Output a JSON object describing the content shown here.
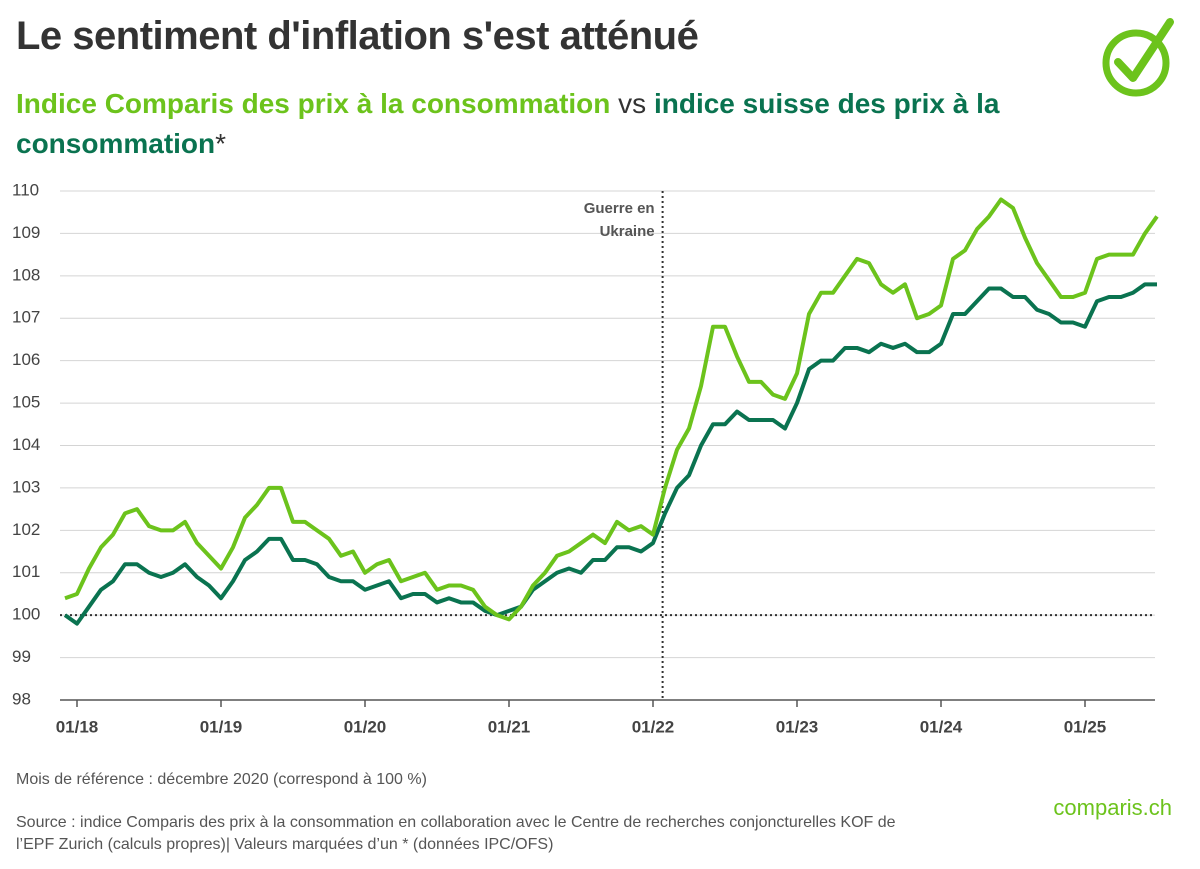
{
  "chart_data": {
    "type": "line",
    "title": "Le sentiment d'inflation s'est atténué",
    "subtitle_connector": "vs",
    "subtitle_suffix": "*",
    "categories": [
      null,
      "01/18",
      null,
      null,
      null,
      null,
      null,
      null,
      null,
      null,
      null,
      null,
      null,
      "01/19",
      null,
      null,
      null,
      null,
      null,
      null,
      null,
      null,
      null,
      null,
      null,
      "01/20",
      null,
      null,
      null,
      null,
      null,
      null,
      null,
      null,
      null,
      null,
      null,
      "01/21",
      null,
      null,
      null,
      null,
      null,
      null,
      null,
      null,
      null,
      null,
      null,
      "01/22",
      null,
      null,
      null,
      null,
      null,
      null,
      null,
      null,
      null,
      null,
      null,
      "01/23",
      null,
      null,
      null,
      null,
      null,
      null,
      null,
      null,
      null,
      null,
      null,
      "01/24",
      null,
      null,
      null,
      null,
      null,
      null,
      null,
      null,
      null,
      null,
      null,
      "01/25",
      null,
      null,
      null,
      null,
      null,
      null
    ],
    "series": [
      {
        "name": "Indice Comparis des prix à la consommation",
        "color": "#6cc31c",
        "values": [
          100.4,
          100.5,
          101.1,
          101.6,
          101.9,
          102.4,
          102.5,
          102.1,
          102.0,
          102.0,
          102.2,
          101.7,
          101.4,
          101.1,
          101.6,
          102.3,
          102.6,
          103.0,
          103.0,
          102.2,
          102.2,
          102.0,
          101.8,
          101.4,
          101.5,
          101.0,
          101.2,
          101.3,
          100.8,
          100.9,
          101.0,
          100.6,
          100.7,
          100.7,
          100.6,
          100.2,
          100.0,
          99.9,
          100.2,
          100.7,
          101.0,
          101.4,
          101.5,
          101.7,
          101.9,
          101.7,
          102.2,
          102.0,
          102.1,
          101.9,
          103.0,
          103.9,
          104.4,
          105.4,
          106.8,
          106.8,
          106.1,
          105.5,
          105.5,
          105.2,
          105.1,
          105.7,
          107.1,
          107.6,
          107.6,
          108.0,
          108.4,
          108.3,
          107.8,
          107.6,
          107.8,
          107.0,
          107.1,
          107.3,
          108.4,
          108.6,
          109.1,
          109.4,
          109.8,
          109.6,
          108.9,
          108.3,
          107.9,
          107.5,
          107.5,
          107.6,
          108.4,
          108.5,
          108.5,
          108.5,
          109.0,
          109.4
        ]
      },
      {
        "name": "indice suisse des prix à la consommation",
        "color": "#0a7350",
        "values": [
          100.0,
          99.8,
          100.2,
          100.6,
          100.8,
          101.2,
          101.2,
          101.0,
          100.9,
          101.0,
          101.2,
          100.9,
          100.7,
          100.4,
          100.8,
          101.3,
          101.5,
          101.8,
          101.8,
          101.3,
          101.3,
          101.2,
          100.9,
          100.8,
          100.8,
          100.6,
          100.7,
          100.8,
          100.4,
          100.5,
          100.5,
          100.3,
          100.4,
          100.3,
          100.3,
          100.1,
          100.0,
          100.1,
          100.2,
          100.6,
          100.8,
          101.0,
          101.1,
          101.0,
          101.3,
          101.3,
          101.6,
          101.6,
          101.5,
          101.7,
          102.4,
          103.0,
          103.3,
          104.0,
          104.5,
          104.5,
          104.8,
          104.6,
          104.6,
          104.6,
          104.4,
          105.0,
          105.8,
          106.0,
          106.0,
          106.3,
          106.3,
          106.2,
          106.4,
          106.3,
          106.4,
          106.2,
          106.2,
          106.4,
          107.1,
          107.1,
          107.4,
          107.7,
          107.7,
          107.5,
          107.5,
          107.2,
          107.1,
          106.9,
          106.9,
          106.8,
          107.4,
          107.5,
          107.5,
          107.6,
          107.8,
          107.8
        ]
      }
    ],
    "ylim": [
      98,
      110
    ],
    "yticks": [
      98,
      99,
      100,
      101,
      102,
      103,
      104,
      105,
      106,
      107,
      108,
      109,
      110
    ],
    "grid": true,
    "baseline": 100,
    "annotation": [
      "Guerre en",
      "Ukraine"
    ],
    "note": "Mois de référence : décembre 2020 (correspond à 100 %)",
    "source": [
      "Source : indice Comparis des prix à la consommation en collaboration avec le Centre de recherches conjoncturelles KOF de",
      "l’EPF Zurich (calculs propres)| Valeurs marquées d’un * (données IPC/OFS)"
    ],
    "logo": "comparis.ch"
  }
}
